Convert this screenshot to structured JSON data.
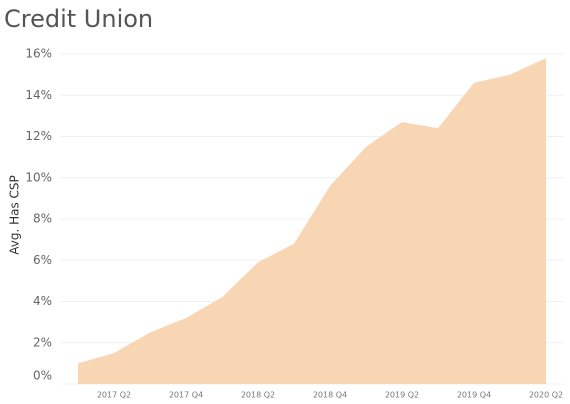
{
  "chart_data": {
    "type": "area",
    "title": "Credit Union",
    "y_label": "Avg. Has CSP",
    "categories": [
      null,
      "2017 Q2",
      null,
      "2017 Q4",
      null,
      "2018 Q2",
      null,
      "2018 Q4",
      null,
      "2019 Q2",
      null,
      "2019 Q4",
      null,
      "2020 Q2"
    ],
    "values": [
      1.0,
      1.5,
      2.5,
      3.2,
      4.2,
      5.9,
      6.8,
      9.6,
      11.5,
      12.7,
      12.4,
      14.6,
      15.0,
      15.8
    ],
    "color": "#f8d5b3",
    "ylim": [
      0,
      16
    ],
    "yticks": [
      {
        "value": 0,
        "label": "0%"
      },
      {
        "value": 2,
        "label": "2%"
      },
      {
        "value": 4,
        "label": "4%"
      },
      {
        "value": 6,
        "label": "6%"
      },
      {
        "value": 8,
        "label": "8%"
      },
      {
        "value": 10,
        "label": "10%"
      },
      {
        "value": 12,
        "label": "12%"
      },
      {
        "value": 14,
        "label": "14%"
      },
      {
        "value": 16,
        "label": "16%"
      }
    ],
    "grid": true
  }
}
